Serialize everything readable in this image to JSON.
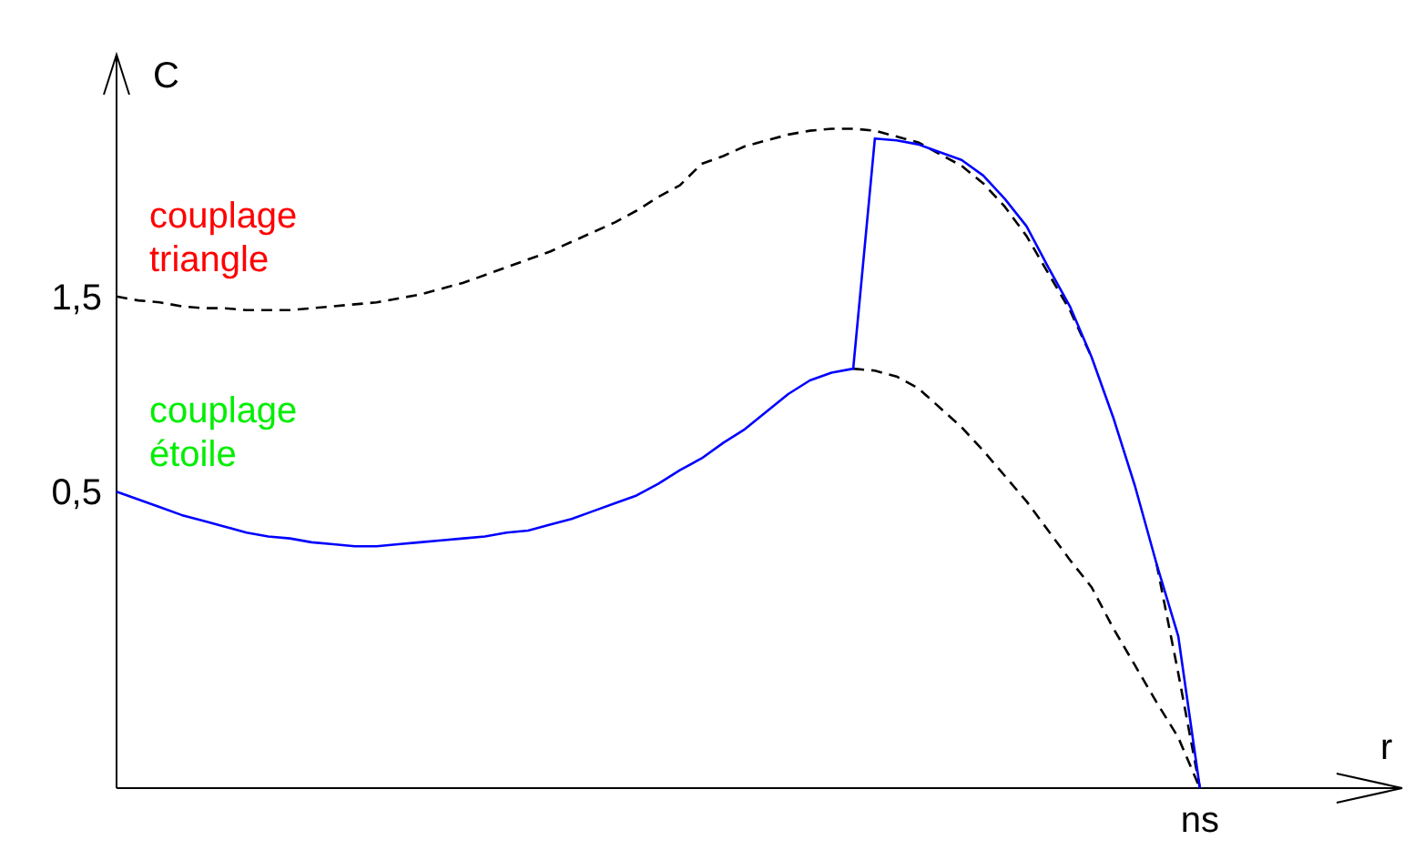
{
  "chart_data": {
    "type": "line",
    "xlabel": "r",
    "ylabel": "C",
    "ylim": [
      -1.02,
      2.74
    ],
    "categories": [
      null,
      null,
      null,
      null,
      null,
      null,
      null,
      null,
      null,
      null,
      null,
      null,
      null,
      null,
      null,
      null,
      null,
      null,
      null,
      null,
      null,
      null,
      null,
      null,
      null,
      null,
      null,
      null,
      null,
      null,
      null,
      null,
      null,
      null,
      null,
      null,
      null,
      null,
      null,
      null,
      null,
      null,
      null,
      null,
      null,
      null,
      null,
      null,
      null,
      null,
      "ns",
      null,
      null,
      null,
      null,
      null,
      null,
      null,
      null,
      null
    ],
    "yticks": [
      {
        "value": 0.5,
        "label": "0,5"
      },
      {
        "value": 1.5,
        "label": "1,5"
      }
    ],
    "marker": "none",
    "series": [
      {
        "color": "#000000",
        "line_style": "dashed",
        "values": [
          1.5,
          1.48,
          1.47,
          1.45,
          1.44,
          1.44,
          1.43,
          1.43,
          1.43,
          1.44,
          1.45,
          1.46,
          1.47,
          1.49,
          1.51,
          1.54,
          1.57,
          1.61,
          1.65,
          1.69,
          1.73,
          1.78,
          1.83,
          1.88,
          1.94,
          2.01,
          2.07,
          2.18,
          2.22,
          2.27,
          2.3,
          2.33,
          2.35,
          2.36,
          2.36,
          2.35,
          2.32,
          2.29,
          2.23,
          2.17,
          2.08,
          1.96,
          1.81,
          1.62,
          1.43,
          1.19,
          null,
          null,
          0.13,
          -0.43,
          -1.02,
          null,
          null,
          null,
          null,
          null,
          null,
          null,
          null,
          null
        ]
      },
      {
        "color": "#000000",
        "line_style": "dashed",
        "values": [
          null,
          null,
          null,
          null,
          null,
          null,
          null,
          null,
          null,
          null,
          null,
          null,
          null,
          null,
          null,
          null,
          null,
          null,
          null,
          null,
          null,
          null,
          null,
          null,
          null,
          null,
          null,
          null,
          null,
          null,
          null,
          null,
          null,
          null,
          1.13,
          1.12,
          1.09,
          1.03,
          0.93,
          0.83,
          0.71,
          0.58,
          0.45,
          0.3,
          0.15,
          0.01,
          -0.2,
          -0.39,
          -0.58,
          -0.76,
          -1.02,
          null,
          null,
          null,
          null,
          null,
          null,
          null,
          null,
          null
        ]
      },
      {
        "color": "#0000ff",
        "line_style": "solid",
        "values": [
          0.5,
          0.46,
          0.42,
          0.38,
          0.35,
          0.32,
          0.29,
          0.27,
          0.26,
          0.24,
          0.23,
          0.22,
          0.22,
          0.23,
          0.24,
          0.25,
          0.26,
          0.27,
          0.29,
          0.3,
          0.33,
          0.36,
          0.4,
          0.44,
          0.48,
          0.54,
          0.61,
          0.67,
          0.75,
          0.82,
          0.91,
          1.0,
          1.07,
          1.11,
          1.13,
          2.31,
          2.3,
          2.28,
          2.24,
          2.2,
          2.12,
          2.0,
          1.86,
          1.65,
          1.45,
          1.19,
          0.88,
          0.53,
          0.13,
          -0.24,
          -1.02,
          null,
          null,
          null,
          null,
          null,
          null,
          null,
          null,
          null
        ]
      }
    ],
    "annotations": [
      "couplage triangle",
      "couplage étoile"
    ]
  }
}
